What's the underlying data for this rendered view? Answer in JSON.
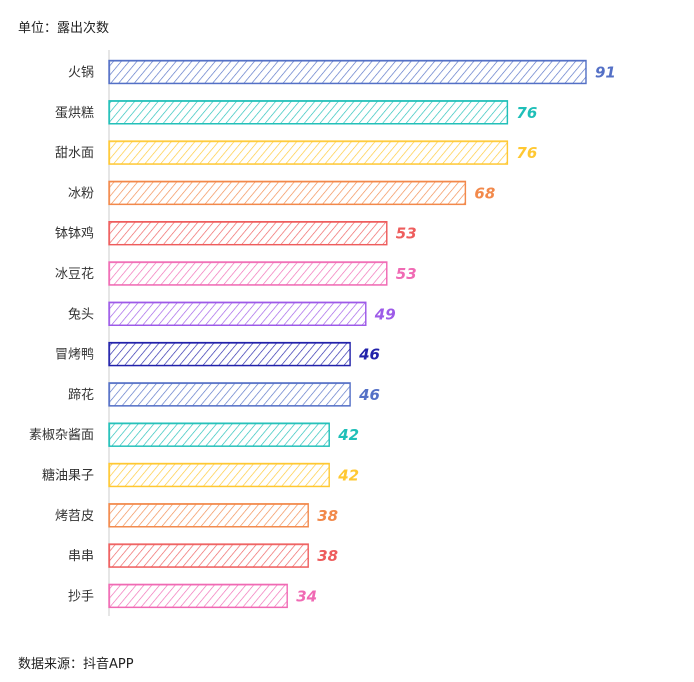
{
  "header": {
    "unit_text": "单位：露出次数"
  },
  "footer": {
    "source_text": "数据来源：抖音APP"
  },
  "chart_data": {
    "type": "bar",
    "orientation": "horizontal",
    "style": "hand-drawn hatched",
    "categories": [
      "火锅",
      "蛋烘糕",
      "甜水面",
      "冰粉",
      "钵钵鸡",
      "冰豆花",
      "兔头",
      "冒烤鸭",
      "蹄花",
      "素椒杂酱面",
      "糖油果子",
      "烤苕皮",
      "串串",
      "抄手"
    ],
    "values": [
      91,
      76,
      76,
      68,
      53,
      53,
      49,
      46,
      46,
      42,
      42,
      38,
      38,
      34
    ],
    "colors": [
      "#5470c6",
      "#1fbfb8",
      "#ffc832",
      "#f2894b",
      "#ee5d5d",
      "#f06ab4",
      "#9d5ae8",
      "#2222aa",
      "#5470c6",
      "#1fbfb8",
      "#ffc832",
      "#f2894b",
      "#ee5d5d",
      "#f06ab4"
    ],
    "xlim": [
      0,
      91
    ],
    "grid": false,
    "legend": "none",
    "data_labels": "right of bar"
  }
}
